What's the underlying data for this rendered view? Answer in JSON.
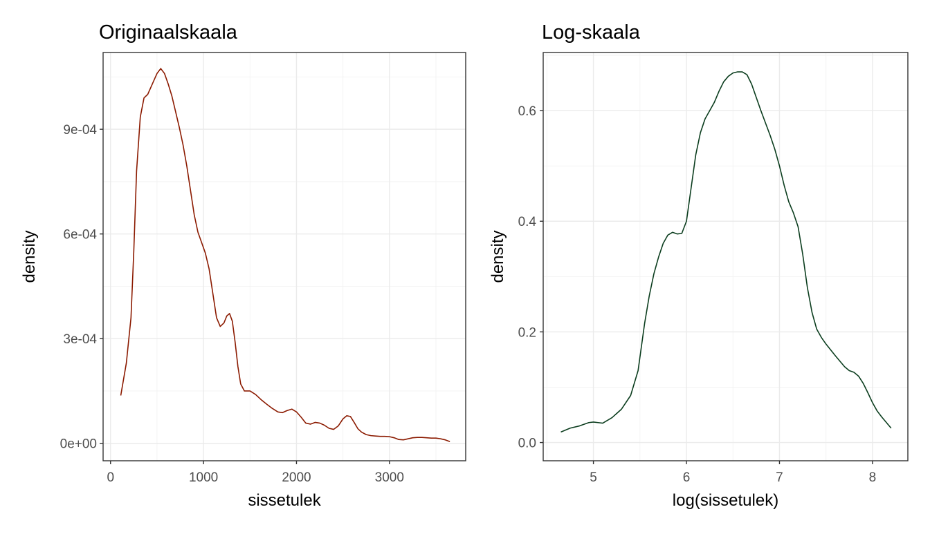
{
  "chart_data": [
    {
      "type": "line",
      "title": "Originaalskaala",
      "xlabel": "sissetulek",
      "ylabel": "density",
      "line_color": "#8B1A00",
      "xlim": [
        -80,
        3820
      ],
      "ylim": [
        -5e-05,
        0.00112
      ],
      "x_ticks": [
        0,
        1000,
        2000,
        3000
      ],
      "x_tick_labels": [
        "0",
        "1000",
        "2000",
        "3000"
      ],
      "y_ticks": [
        0,
        0.0003,
        0.0006,
        0.0009
      ],
      "y_tick_labels": [
        "0e+00",
        "3e-04",
        "6e-04",
        "9e-04"
      ],
      "grid": true,
      "series": [
        {
          "x": [
            110,
            170,
            220,
            250,
            280,
            320,
            360,
            400,
            450,
            500,
            540,
            580,
            620,
            660,
            700,
            740,
            780,
            820,
            860,
            900,
            940,
            980,
            1020,
            1060,
            1100,
            1140,
            1180,
            1220,
            1250,
            1280,
            1310,
            1340,
            1370,
            1400,
            1440,
            1500,
            1560,
            1620,
            1680,
            1740,
            1800,
            1850,
            1900,
            1950,
            2000,
            2050,
            2100,
            2150,
            2200,
            2250,
            2300,
            2350,
            2400,
            2450,
            2500,
            2540,
            2580,
            2620,
            2660,
            2700,
            2750,
            2800,
            2850,
            2900,
            2950,
            3000,
            3050,
            3100,
            3150,
            3200,
            3250,
            3300,
            3350,
            3400,
            3450,
            3500,
            3550,
            3600,
            3650
          ],
          "y": [
            0.000137,
            0.00023,
            0.00036,
            0.00055,
            0.00078,
            0.000935,
            0.00099,
            0.001,
            0.00103,
            0.00106,
            0.001074,
            0.00106,
            0.00103,
            0.000995,
            0.00095,
            0.000905,
            0.000855,
            0.000795,
            0.000725,
            0.000655,
            0.000605,
            0.000575,
            0.000545,
            0.0005,
            0.00043,
            0.00036,
            0.000335,
            0.000345,
            0.000365,
            0.000372,
            0.00035,
            0.00029,
            0.00022,
            0.00017,
            0.00015,
            0.00015,
            0.00014,
            0.000125,
            0.000112,
            0.0001,
            9e-05,
            8.8e-05,
            9.4e-05,
            9.8e-05,
            9e-05,
            7.5e-05,
            5.8e-05,
            5.5e-05,
            6e-05,
            5.8e-05,
            5.2e-05,
            4.3e-05,
            4e-05,
            5e-05,
            7e-05,
            7.9e-05,
            7.7e-05,
            6e-05,
            4.2e-05,
            3.2e-05,
            2.5e-05,
            2.2e-05,
            2.1e-05,
            2e-05,
            2e-05,
            1.9e-05,
            1.6e-05,
            1.1e-05,
            1e-05,
            1.3e-05,
            1.6e-05,
            1.7e-05,
            1.7e-05,
            1.6e-05,
            1.5e-05,
            1.5e-05,
            1.3e-05,
            1e-05,
            5e-06
          ]
        }
      ]
    },
    {
      "type": "line",
      "title": "Log-skaala",
      "xlabel": "log(sissetulek)",
      "ylabel": "density",
      "line_color": "#0B3D1E",
      "xlim": [
        4.46,
        8.38
      ],
      "ylim": [
        -0.033,
        0.705
      ],
      "x_ticks": [
        5,
        6,
        7,
        8
      ],
      "x_tick_labels": [
        "5",
        "6",
        "7",
        "8"
      ],
      "y_ticks": [
        0.0,
        0.2,
        0.4,
        0.6
      ],
      "y_tick_labels": [
        "0.0",
        "0.2",
        "0.4",
        "0.6"
      ],
      "grid": true,
      "series": [
        {
          "x": [
            4.65,
            4.75,
            4.85,
            4.95,
            5.0,
            5.05,
            5.1,
            5.2,
            5.3,
            5.4,
            5.48,
            5.55,
            5.6,
            5.65,
            5.7,
            5.75,
            5.8,
            5.85,
            5.9,
            5.95,
            6.0,
            6.05,
            6.1,
            6.15,
            6.2,
            6.25,
            6.3,
            6.35,
            6.4,
            6.45,
            6.5,
            6.55,
            6.6,
            6.65,
            6.7,
            6.8,
            6.9,
            6.95,
            7.0,
            7.05,
            7.1,
            7.15,
            7.2,
            7.25,
            7.3,
            7.35,
            7.4,
            7.45,
            7.5,
            7.6,
            7.7,
            7.75,
            7.8,
            7.85,
            7.9,
            7.95,
            8.0,
            8.05,
            8.1,
            8.15,
            8.2
          ],
          "y": [
            0.019,
            0.026,
            0.03,
            0.036,
            0.037,
            0.036,
            0.035,
            0.045,
            0.06,
            0.085,
            0.13,
            0.215,
            0.265,
            0.305,
            0.335,
            0.36,
            0.375,
            0.38,
            0.377,
            0.378,
            0.4,
            0.46,
            0.52,
            0.56,
            0.585,
            0.6,
            0.615,
            0.635,
            0.652,
            0.662,
            0.668,
            0.67,
            0.67,
            0.665,
            0.648,
            0.6,
            0.555,
            0.53,
            0.5,
            0.465,
            0.435,
            0.415,
            0.39,
            0.34,
            0.28,
            0.235,
            0.205,
            0.19,
            0.178,
            0.157,
            0.137,
            0.13,
            0.127,
            0.12,
            0.107,
            0.09,
            0.072,
            0.057,
            0.046,
            0.036,
            0.026
          ]
        }
      ]
    }
  ]
}
